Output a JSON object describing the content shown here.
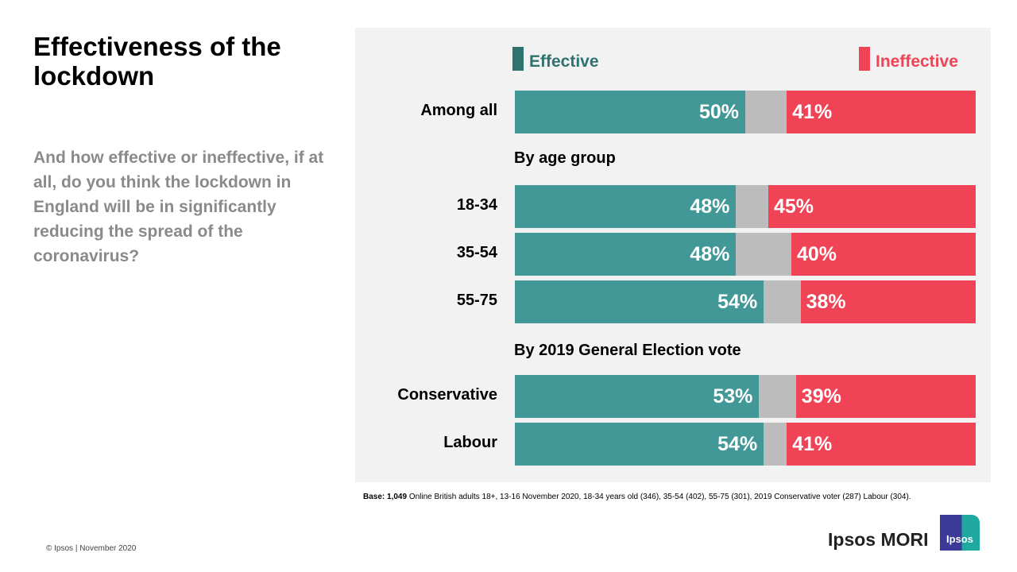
{
  "title": "Effectiveness of the lockdown",
  "question": "And how effective or ineffective, if at all, do you think the lockdown in England will be in significantly reducing the spread of the coronavirus?",
  "colors": {
    "effective": "#429896",
    "ineffective": "#f04356",
    "neutral": "#bcbcbc",
    "legend_effective": "#2f7370"
  },
  "chart_data": {
    "type": "bar",
    "orientation": "horizontal-stacked",
    "legend": [
      "Effective",
      "Ineffective"
    ],
    "legend_placement": "top",
    "sections": [
      "By age group",
      "By 2019 General Election vote"
    ],
    "categories": [
      "Among all",
      "18-34",
      "35-54",
      "55-75",
      "Conservative",
      "Labour"
    ],
    "series": [
      {
        "name": "Effective",
        "values": [
          50,
          48,
          48,
          54,
          53,
          54
        ],
        "labels": [
          "50%",
          "48%",
          "48%",
          "54%",
          "53%",
          "54%"
        ]
      },
      {
        "name": "Ineffective",
        "values": [
          41,
          45,
          40,
          38,
          39,
          41
        ],
        "labels": [
          "41%",
          "45%",
          "40%",
          "38%",
          "39%",
          "41%"
        ]
      }
    ],
    "xlim": [
      0,
      100
    ]
  },
  "base_label": "Base: 1,049",
  "base_text": " Online British adults 18+,  13-16 November 2020, 18-34 years old (346), 35-54 (402), 55-75 (301), 2019 Conservative voter (287) Labour (304).",
  "copyright": "© Ipsos | November 2020",
  "brand": "Ipsos MORI",
  "logo_text": "Ipsos"
}
